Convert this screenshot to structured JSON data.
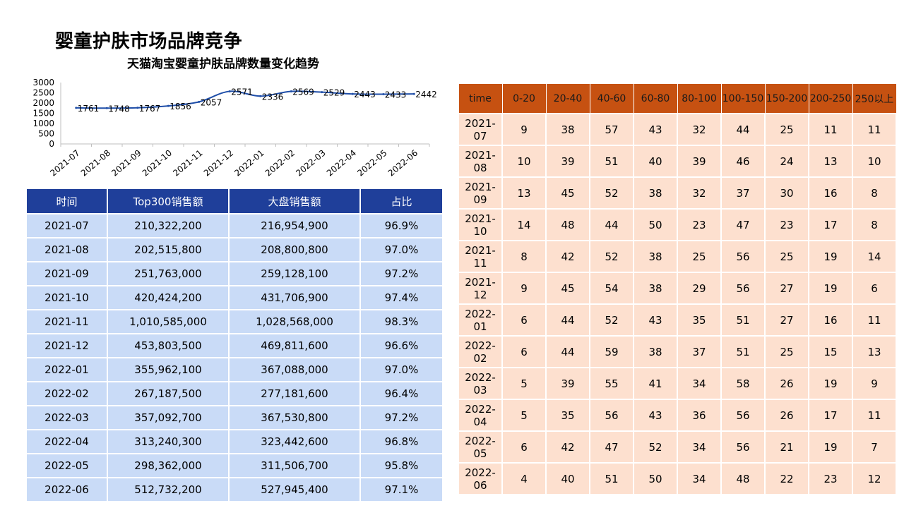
{
  "page_title": "婴童护肤市场品牌竞争",
  "chart_data": {
    "type": "line",
    "title": "天猫淘宝婴童护肤品牌数量变化趋势",
    "xlabel": "",
    "ylabel": "",
    "categories": [
      "2021-07",
      "2021-08",
      "2021-09",
      "2021-10",
      "2021-11",
      "2021-12",
      "2022-01",
      "2022-02",
      "2022-03",
      "2022-04",
      "2022-05",
      "2022-06"
    ],
    "values": [
      1761,
      1748,
      1767,
      1856,
      2057,
      2571,
      2336,
      2569,
      2529,
      2443,
      2433,
      2442
    ],
    "ylim": [
      0,
      3000
    ],
    "yticks": [
      "3000",
      "2500",
      "2000",
      "1500",
      "1000",
      "500",
      "0"
    ],
    "grid": false,
    "line_color": "#1f4ea8"
  },
  "left_table": {
    "headers": [
      "时间",
      "Top300销售额",
      "大盘销售额",
      "占比"
    ],
    "rows": [
      [
        "2021-07",
        "210,322,200",
        "216,954,900",
        "96.9%"
      ],
      [
        "2021-08",
        "202,515,800",
        "208,800,800",
        "97.0%"
      ],
      [
        "2021-09",
        "251,763,000",
        "259,128,100",
        "97.2%"
      ],
      [
        "2021-10",
        "420,424,200",
        "431,706,900",
        "97.4%"
      ],
      [
        "2021-11",
        "1,010,585,000",
        "1,028,568,000",
        "98.3%"
      ],
      [
        "2021-12",
        "453,803,500",
        "469,811,600",
        "96.6%"
      ],
      [
        "2022-01",
        "355,962,100",
        "367,088,000",
        "97.0%"
      ],
      [
        "2022-02",
        "267,187,500",
        "277,181,600",
        "96.4%"
      ],
      [
        "2022-03",
        "357,092,700",
        "367,530,800",
        "97.2%"
      ],
      [
        "2022-04",
        "313,240,300",
        "323,442,600",
        "96.8%"
      ],
      [
        "2022-05",
        "298,362,000",
        "311,506,700",
        "95.8%"
      ],
      [
        "2022-06",
        "512,732,200",
        "527,945,400",
        "97.1%"
      ]
    ],
    "header_color": "#1f3f9a",
    "cell_color": "#c9dbf7"
  },
  "right_table": {
    "headers": [
      "time",
      "0-20",
      "20-40",
      "40-60",
      "60-80",
      "80-100",
      "100-150",
      "150-200",
      "200-250",
      "250以上"
    ],
    "rows": [
      [
        "2021-07",
        "9",
        "38",
        "57",
        "43",
        "32",
        "44",
        "25",
        "11",
        "11"
      ],
      [
        "2021-08",
        "10",
        "39",
        "51",
        "40",
        "39",
        "46",
        "24",
        "13",
        "10"
      ],
      [
        "2021-09",
        "13",
        "45",
        "52",
        "38",
        "32",
        "37",
        "30",
        "16",
        "8"
      ],
      [
        "2021-10",
        "14",
        "48",
        "44",
        "50",
        "23",
        "47",
        "23",
        "17",
        "8"
      ],
      [
        "2021-11",
        "8",
        "42",
        "52",
        "38",
        "25",
        "56",
        "25",
        "19",
        "14"
      ],
      [
        "2021-12",
        "9",
        "45",
        "54",
        "38",
        "29",
        "56",
        "27",
        "19",
        "6"
      ],
      [
        "2022-01",
        "6",
        "44",
        "52",
        "43",
        "35",
        "51",
        "27",
        "16",
        "11"
      ],
      [
        "2022-02",
        "6",
        "44",
        "59",
        "38",
        "37",
        "51",
        "25",
        "15",
        "13"
      ],
      [
        "2022-03",
        "5",
        "39",
        "55",
        "41",
        "34",
        "58",
        "26",
        "19",
        "9"
      ],
      [
        "2022-04",
        "5",
        "35",
        "56",
        "43",
        "36",
        "56",
        "26",
        "17",
        "11"
      ],
      [
        "2022-05",
        "6",
        "42",
        "47",
        "52",
        "34",
        "56",
        "21",
        "19",
        "7"
      ],
      [
        "2022-06",
        "4",
        "40",
        "51",
        "50",
        "34",
        "48",
        "22",
        "23",
        "12"
      ]
    ],
    "header_color": "#c65111",
    "cell_color": "#fde0cf"
  }
}
